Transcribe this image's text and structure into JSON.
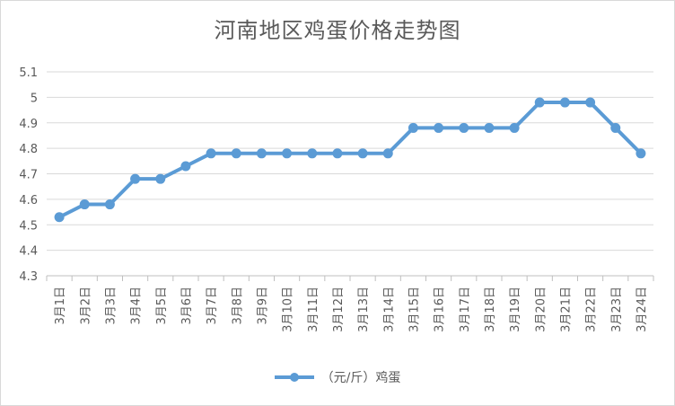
{
  "chart_data": {
    "type": "line",
    "title": "河南地区鸡蛋价格走势图",
    "categories": [
      "3月1日",
      "3月2日",
      "3月3日",
      "3月4日",
      "3月5日",
      "3月6日",
      "3月7日",
      "3月8日",
      "3月9日",
      "3月10日",
      "3月11日",
      "3月12日",
      "3月13日",
      "3月14日",
      "3月15日",
      "3月16日",
      "3月17日",
      "3月18日",
      "3月19日",
      "3月20日",
      "3月21日",
      "3月22日",
      "3月23日",
      "3月24日"
    ],
    "series": [
      {
        "name": "（元/斤）鸡蛋",
        "values": [
          4.53,
          4.58,
          4.58,
          4.68,
          4.68,
          4.73,
          4.78,
          4.78,
          4.78,
          4.78,
          4.78,
          4.78,
          4.78,
          4.78,
          4.88,
          4.88,
          4.88,
          4.88,
          4.88,
          4.98,
          4.98,
          4.98,
          4.88,
          4.78
        ],
        "color": "#5b9bd5"
      }
    ],
    "ylim": [
      4.3,
      5.1
    ],
    "yticks": [
      "4.3",
      "4.4",
      "4.5",
      "4.6",
      "4.7",
      "4.8",
      "4.9",
      "5",
      "5.1"
    ],
    "grid": true,
    "legend_position": "bottom"
  }
}
